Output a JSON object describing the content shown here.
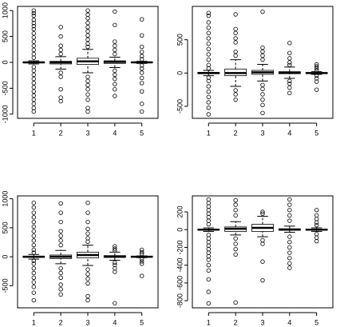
{
  "chart_data": [
    {
      "type": "box",
      "categories": [
        "1",
        "2",
        "3",
        "4",
        "5"
      ],
      "color": "#000000",
      "ylim": [
        -1080,
        1080
      ],
      "yticks": [
        -1000,
        -500,
        0,
        500,
        1000
      ],
      "boxes": [
        {
          "whisker_low": -30,
          "q1": -10,
          "median": 0,
          "q3": 10,
          "whisker_high": 30,
          "outliers": [
            1000,
            950,
            900,
            820,
            760,
            700,
            640,
            560,
            480,
            400,
            320,
            240,
            160,
            90,
            -90,
            -160,
            -240,
            -320,
            -400,
            -480,
            -560,
            -640,
            -720,
            -800,
            -880,
            -950
          ]
        },
        {
          "whisker_low": -130,
          "q1": -30,
          "median": 0,
          "q3": 20,
          "whisker_high": 110,
          "outliers": [
            680,
            500,
            320,
            240,
            160,
            -200,
            -280,
            -520,
            -680,
            -750
          ]
        },
        {
          "whisker_low": -200,
          "q1": -40,
          "median": 20,
          "q3": 80,
          "whisker_high": 250,
          "outliers": [
            1000,
            920,
            850,
            760,
            680,
            600,
            520,
            440,
            360,
            300,
            -280,
            -360,
            -440,
            -520,
            -620,
            -720,
            -880,
            -950
          ]
        },
        {
          "whisker_low": -100,
          "q1": -20,
          "median": 10,
          "q3": 30,
          "whisker_high": 100,
          "outliers": [
            980,
            720,
            400,
            320,
            240,
            160,
            -160,
            -240,
            -320,
            -420,
            -520,
            -650
          ]
        },
        {
          "whisker_low": -20,
          "q1": -5,
          "median": 0,
          "q3": 5,
          "whisker_high": 20,
          "outliers": [
            830,
            520,
            300,
            200,
            120,
            60,
            -60,
            -120,
            -200,
            -300,
            -400,
            -560,
            -800,
            -950
          ]
        }
      ]
    },
    {
      "type": "box",
      "categories": [
        "1",
        "2",
        "3",
        "4",
        "5"
      ],
      "color": "#000000",
      "ylim": [
        -680,
        1000
      ],
      "yticks": [
        -500,
        0,
        500
      ],
      "boxes": [
        {
          "whisker_low": -40,
          "q1": -10,
          "median": 0,
          "q3": 10,
          "whisker_high": 40,
          "outliers": [
            900,
            860,
            760,
            680,
            600,
            520,
            440,
            360,
            280,
            200,
            120,
            70,
            -70,
            -120,
            -200,
            -280,
            -360,
            -440,
            -520,
            -620
          ]
        },
        {
          "whisker_low": -200,
          "q1": -40,
          "median": 0,
          "q3": 60,
          "whisker_high": 200,
          "outliers": [
            880,
            660,
            600,
            520,
            460,
            320,
            260,
            -260,
            -320,
            -400
          ]
        },
        {
          "whisker_low": -120,
          "q1": -20,
          "median": 10,
          "q3": 40,
          "whisker_high": 130,
          "outliers": [
            920,
            380,
            320,
            260,
            200,
            -180,
            -240,
            -320,
            -400,
            -480,
            -600
          ]
        },
        {
          "whisker_low": -80,
          "q1": -10,
          "median": 5,
          "q3": 20,
          "whisker_high": 90,
          "outliers": [
            450,
            300,
            220,
            160,
            120,
            -120,
            -160,
            -220,
            -300
          ]
        },
        {
          "whisker_low": -20,
          "q1": -5,
          "median": 0,
          "q3": 5,
          "whisker_high": 20,
          "outliers": [
            130,
            100,
            70,
            40,
            -40,
            -80,
            -130,
            -250
          ]
        }
      ]
    },
    {
      "type": "box",
      "categories": [
        "1",
        "2",
        "3",
        "4",
        "5"
      ],
      "color": "#000000",
      "ylim": [
        -880,
        1050
      ],
      "yticks": [
        -500,
        0,
        500,
        1000
      ],
      "boxes": [
        {
          "whisker_low": -40,
          "q1": -10,
          "median": 0,
          "q3": 10,
          "whisker_high": 40,
          "outliers": [
            930,
            850,
            760,
            680,
            600,
            520,
            440,
            360,
            280,
            200,
            120,
            70,
            -70,
            -120,
            -200,
            -280,
            -360,
            -440,
            -520,
            -620,
            -750
          ]
        },
        {
          "whisker_low": -120,
          "q1": -30,
          "median": 0,
          "q3": 30,
          "whisker_high": 110,
          "outliers": [
            920,
            760,
            600,
            440,
            360,
            280,
            200,
            -200,
            -280,
            -360,
            -480,
            -560,
            -650
          ]
        },
        {
          "whisker_low": -150,
          "q1": -20,
          "median": 30,
          "q3": 80,
          "whisker_high": 200,
          "outliers": [
            930,
            760,
            600,
            480,
            400,
            320,
            260,
            -220,
            -300,
            -380,
            -460,
            -680,
            -750
          ]
        },
        {
          "whisker_low": -60,
          "q1": -10,
          "median": 0,
          "q3": 20,
          "whisker_high": 80,
          "outliers": [
            180,
            140,
            110,
            -100,
            -140,
            -200,
            -260,
            -800
          ]
        },
        {
          "whisker_low": -15,
          "q1": -5,
          "median": 0,
          "q3": 5,
          "whisker_high": 15,
          "outliers": [
            120,
            80,
            50,
            -40,
            -80,
            -120,
            -330
          ]
        }
      ]
    },
    {
      "type": "box",
      "categories": [
        "1",
        "2",
        "3",
        "4",
        "5"
      ],
      "color": "#000000",
      "ylim": [
        -880,
        380
      ],
      "yticks": [
        -800,
        -600,
        -400,
        -200,
        0,
        200
      ],
      "boxes": [
        {
          "whisker_low": -20,
          "q1": -5,
          "median": 0,
          "q3": 5,
          "whisker_high": 20,
          "outliers": [
            340,
            300,
            260,
            220,
            180,
            140,
            100,
            60,
            -60,
            -100,
            -140,
            -180,
            -220,
            -260,
            -300,
            -340,
            -400,
            -460,
            -560,
            -700,
            -830
          ]
        },
        {
          "whisker_low": -60,
          "q1": -20,
          "median": 10,
          "q3": 30,
          "whisker_high": 90,
          "outliers": [
            330,
            280,
            220,
            160,
            -100,
            -160,
            -220,
            -280,
            -820
          ]
        },
        {
          "whisker_low": -80,
          "q1": -20,
          "median": 20,
          "q3": 60,
          "whisker_high": 150,
          "outliers": [
            200,
            180,
            -120,
            -160,
            -360,
            -570
          ]
        },
        {
          "whisker_low": -30,
          "q1": -5,
          "median": 0,
          "q3": 10,
          "whisker_high": 40,
          "outliers": [
            340,
            280,
            220,
            160,
            100,
            -80,
            -140,
            -200,
            -260,
            -320,
            -380,
            -430
          ]
        },
        {
          "whisker_low": -20,
          "q1": -5,
          "median": 0,
          "q3": 5,
          "whisker_high": 20,
          "outliers": [
            220,
            160,
            120,
            80,
            50,
            -50,
            -90,
            -130
          ]
        }
      ]
    }
  ]
}
